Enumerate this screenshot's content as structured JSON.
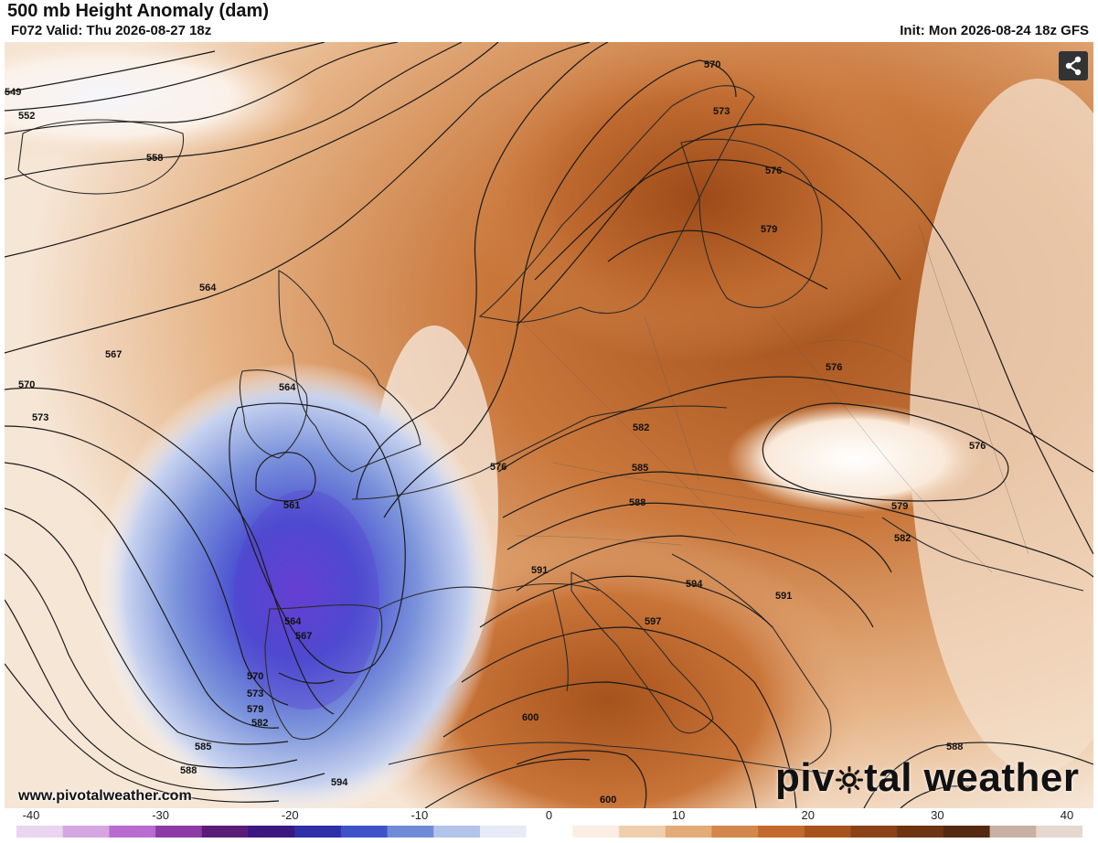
{
  "header": {
    "title": "500 mb Height Anomaly (dam)",
    "valid": "F072 Valid: Thu 2026-08-27 18z",
    "init": "Init: Mon 2026-08-24 18z GFS"
  },
  "footer": {
    "website": "www.pivotalweather.com",
    "brand_prefix": "piv",
    "brand_suffix": "tal weather"
  },
  "share_button": {
    "icon": "share-icon"
  },
  "colorbar": {
    "ticks": [
      "-40",
      "-30",
      "-20",
      "-10",
      "0",
      "10",
      "20",
      "30",
      "40"
    ],
    "colors": [
      "#e9d5ef",
      "#d6a6e3",
      "#b96bd2",
      "#8e3aa6",
      "#5a1c78",
      "#3b1780",
      "#2f2fa8",
      "#3f53c9",
      "#6f8bd8",
      "#b3c3ea",
      "#e6ebf6",
      "#ffffff",
      "#fbeee3",
      "#f0cfae",
      "#e3ab78",
      "#d3874a",
      "#c26a2c",
      "#a8531d",
      "#8a4216",
      "#6e3412",
      "#55290f",
      "#c9b0a4",
      "#e6d7cf"
    ]
  },
  "contour_labels": [
    {
      "text": "549"
    },
    {
      "text": "552"
    },
    {
      "text": "558"
    },
    {
      "text": "564"
    },
    {
      "text": "567"
    },
    {
      "text": "570"
    },
    {
      "text": "573"
    },
    {
      "text": "564"
    },
    {
      "text": "561"
    },
    {
      "text": "564"
    },
    {
      "text": "567"
    },
    {
      "text": "570"
    },
    {
      "text": "573"
    },
    {
      "text": "579"
    },
    {
      "text": "582"
    },
    {
      "text": "585"
    },
    {
      "text": "588"
    },
    {
      "text": "594"
    },
    {
      "text": "570"
    },
    {
      "text": "573"
    },
    {
      "text": "576"
    },
    {
      "text": "579"
    },
    {
      "text": "576"
    },
    {
      "text": "576"
    },
    {
      "text": "576"
    },
    {
      "text": "582"
    },
    {
      "text": "585"
    },
    {
      "text": "588"
    },
    {
      "text": "591"
    },
    {
      "text": "594"
    },
    {
      "text": "597"
    },
    {
      "text": "591"
    },
    {
      "text": "579"
    },
    {
      "text": "582"
    },
    {
      "text": "600"
    },
    {
      "text": "600"
    },
    {
      "text": "588"
    }
  ]
}
